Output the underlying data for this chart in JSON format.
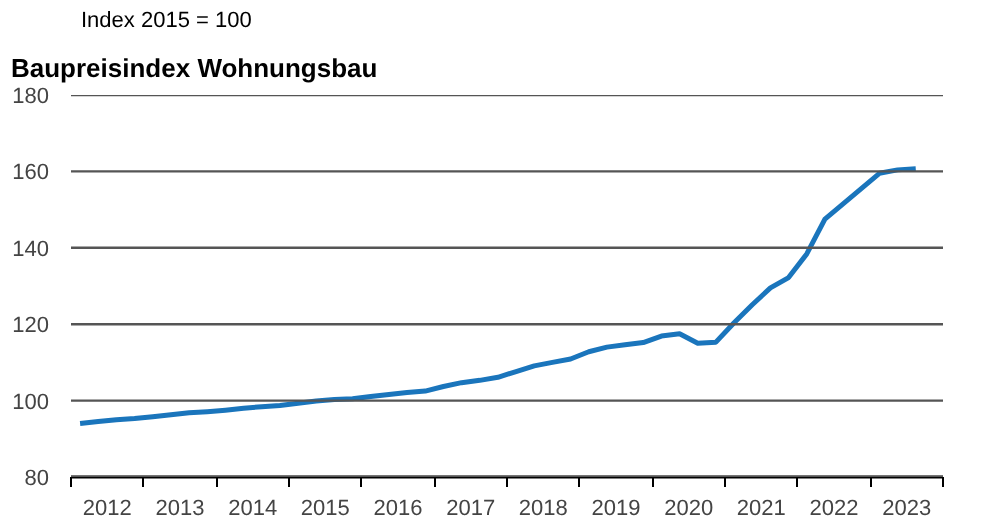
{
  "chart_data": {
    "type": "line",
    "title": "Baupreisindex Wohnungsbau",
    "ylabel": "Index 2015 = 100",
    "x": [
      2012.125,
      2012.375,
      2012.625,
      2012.875,
      2013.125,
      2013.375,
      2013.625,
      2013.875,
      2014.125,
      2014.375,
      2014.625,
      2014.875,
      2015.125,
      2015.375,
      2015.625,
      2015.875,
      2016.125,
      2016.375,
      2016.625,
      2016.875,
      2017.125,
      2017.375,
      2017.625,
      2017.875,
      2018.125,
      2018.375,
      2018.625,
      2018.875,
      2019.125,
      2019.375,
      2019.625,
      2019.875,
      2020.125,
      2020.375,
      2020.625,
      2020.875,
      2021.125,
      2021.375,
      2021.625,
      2021.875,
      2022.125,
      2022.375,
      2022.625,
      2022.875,
      2023.125,
      2023.375,
      2023.625
    ],
    "series": [
      {
        "color": "#1a75bc",
        "values": [
          94.0,
          94.5,
          95.0,
          95.3,
          95.8,
          96.3,
          96.8,
          97.1,
          97.5,
          98.0,
          98.4,
          98.7,
          99.3,
          99.9,
          100.3,
          100.5,
          101.1,
          101.6,
          102.1,
          102.5,
          103.7,
          104.7,
          105.3,
          106.1,
          107.6,
          109.1,
          110.0,
          110.9,
          112.8,
          114.0,
          114.6,
          115.2,
          116.9,
          117.5,
          115.0,
          115.3,
          120.4,
          125.1,
          129.5,
          132.2,
          138.4,
          147.5,
          151.5,
          155.5,
          159.5,
          160.4,
          160.7
        ]
      }
    ],
    "xlim": [
      2012,
      2024
    ],
    "ylim": [
      80,
      180
    ],
    "yticks": [
      80,
      100,
      120,
      140,
      160,
      180
    ],
    "xticks": [
      {
        "value": 2012,
        "label": null
      },
      {
        "value": 2013,
        "label": null
      },
      {
        "value": 2014,
        "label": null
      },
      {
        "value": 2015,
        "label": null
      },
      {
        "value": 2016,
        "label": null
      },
      {
        "value": 2017,
        "label": null
      },
      {
        "value": 2018,
        "label": null
      },
      {
        "value": 2019,
        "label": null
      },
      {
        "value": 2020,
        "label": null
      },
      {
        "value": 2021,
        "label": null
      },
      {
        "value": 2022,
        "label": null
      },
      {
        "value": 2023,
        "label": null
      },
      {
        "value": 2024,
        "label": null
      },
      {
        "value": 2012.5,
        "label": "2012"
      },
      {
        "value": 2013.5,
        "label": "2013"
      },
      {
        "value": 2014.5,
        "label": "2014"
      },
      {
        "value": 2015.5,
        "label": "2015"
      },
      {
        "value": 2016.5,
        "label": "2016"
      },
      {
        "value": 2017.5,
        "label": "2017"
      },
      {
        "value": 2018.5,
        "label": "2018"
      },
      {
        "value": 2019.5,
        "label": "2019"
      },
      {
        "value": 2020.5,
        "label": "2020"
      },
      {
        "value": 2021.5,
        "label": "2021"
      },
      {
        "value": 2022.5,
        "label": "2022"
      },
      {
        "value": 2023.5,
        "label": "2023"
      }
    ],
    "grid": "y",
    "line_style": "solid"
  }
}
